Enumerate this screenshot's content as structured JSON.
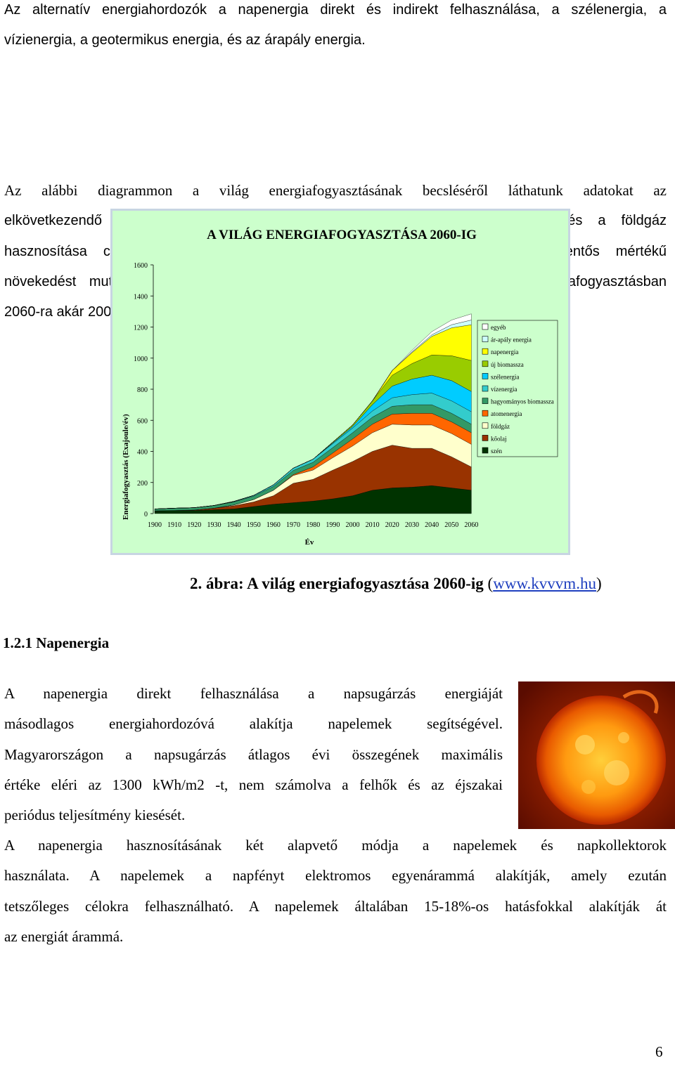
{
  "intro": {
    "lines": [
      "Az alternatív energiahordozók a napenergia direkt és indirekt felhasználása, a szélenergia, a",
      "vízienergia, a geotermikus energia, és az árapály energia."
    ]
  },
  "chart_paragraph": {
    "lines": [
      "Az alábbi diagrammon a világ energiafogyasztásának becsléséről láthatunk adatokat az",
      "elkövetkezendő évtizedekre. Az ábrából kivehető, hogy a kőolaj, a szén és a földgáz",
      "hasznosítása csökkeni fog, míg a megújuló energiaforrások kiaknázása jelentős mértékű",
      "növekedést mutat. Így a citromsárgával jelölt napenergia részvétele az energiafogyasztásban",
      "2060-ra akár 200-300 Exajoule is lehet évente!"
    ]
  },
  "chart_data": {
    "type": "area",
    "stacked": true,
    "title": "A VILÁG ENERGIAFOGYASZTÁSA 2060-IG",
    "xlabel": "Év",
    "ylabel": "Energiafogyasztás (Exajoule/év)",
    "ylim": [
      0,
      1600
    ],
    "y_ticks": [
      "0",
      "200",
      "400",
      "600",
      "800",
      "1000",
      "1200",
      "1400",
      "1600"
    ],
    "x": [
      1900,
      1910,
      1920,
      1930,
      1940,
      1950,
      1960,
      1970,
      1980,
      1990,
      2000,
      2010,
      2020,
      2030,
      2040,
      2050,
      2060
    ],
    "x_ticks": [
      "1900",
      "1910",
      "1920",
      "1930",
      "1940",
      "1950",
      "1960",
      "1970",
      "1980",
      "1990",
      "2000",
      "2010",
      "2020",
      "2030",
      "2040",
      "2050",
      "2060"
    ],
    "legend_position": "right",
    "plot_background": "#ccffcc",
    "series": [
      {
        "name": "szén",
        "color": "#003300",
        "values": [
          18,
          20,
          20,
          25,
          30,
          45,
          60,
          70,
          80,
          95,
          115,
          150,
          165,
          170,
          180,
          165,
          150
        ]
      },
      {
        "name": "kőolaj",
        "color": "#993300",
        "values": [
          0,
          0,
          3,
          10,
          20,
          30,
          55,
          125,
          140,
          185,
          220,
          250,
          275,
          250,
          240,
          200,
          150
        ]
      },
      {
        "name": "földgáz",
        "color": "#ffffcc",
        "values": [
          0,
          0,
          0,
          0,
          5,
          15,
          35,
          50,
          60,
          80,
          100,
          120,
          135,
          150,
          150,
          150,
          145
        ]
      },
      {
        "name": "atomenergia",
        "color": "#ff6600",
        "values": [
          0,
          0,
          0,
          0,
          0,
          0,
          0,
          5,
          20,
          30,
          45,
          55,
          65,
          75,
          75,
          75,
          75
        ]
      },
      {
        "name": "hagyományos biomassza",
        "color": "#339966",
        "values": [
          12,
          15,
          15,
          17,
          20,
          22,
          25,
          27,
          30,
          35,
          40,
          45,
          50,
          55,
          55,
          55,
          55
        ]
      },
      {
        "name": "vízenergia",
        "color": "#33cccc",
        "values": [
          0,
          0,
          0,
          0,
          3,
          5,
          10,
          15,
          20,
          25,
          30,
          40,
          55,
          65,
          75,
          80,
          80
        ]
      },
      {
        "name": "szélenergia",
        "color": "#00ccff",
        "values": [
          0,
          0,
          0,
          0,
          0,
          0,
          0,
          0,
          0,
          5,
          10,
          40,
          75,
          100,
          115,
          130,
          130
        ]
      },
      {
        "name": "új biomassza",
        "color": "#99cc00",
        "values": [
          0,
          0,
          0,
          0,
          0,
          0,
          0,
          0,
          0,
          5,
          10,
          25,
          70,
          100,
          130,
          160,
          200
        ]
      },
      {
        "name": "napenergia",
        "color": "#ffff00",
        "values": [
          0,
          0,
          0,
          0,
          0,
          0,
          0,
          0,
          0,
          0,
          0,
          0,
          30,
          70,
          120,
          180,
          230
        ]
      },
      {
        "name": "ár-apály energia",
        "color": "#ccffff",
        "values": [
          0,
          0,
          0,
          0,
          0,
          0,
          0,
          0,
          0,
          0,
          0,
          0,
          0,
          5,
          10,
          20,
          30
        ]
      },
      {
        "name": "egyéb",
        "color": "#ffffff",
        "values": [
          0,
          0,
          0,
          0,
          0,
          0,
          0,
          0,
          0,
          0,
          0,
          0,
          0,
          10,
          20,
          30,
          40
        ]
      }
    ],
    "legend_entries": [
      "egyéb",
      "ár-apály energia",
      "napenergia",
      "új biomassza",
      "szélenergia",
      "vízenergia",
      "hagyományos biomassza",
      "atomenergia",
      "földgáz",
      "kőolaj",
      "szén"
    ]
  },
  "caption": {
    "text": "2. ábra: A világ energiafogyasztása 2060-ig",
    "paren_open": " (",
    "link": "www.kvvvm.hu",
    "paren_close": ")"
  },
  "section": {
    "heading": "1.2.1 Napenergia"
  },
  "solar_paragraph": {
    "lines": [
      "A napenergia direkt felhasználása a napsugárzás energiáját",
      "másodlagos energiahordozóvá alakítja napelemek segítségével.",
      "Magyarországon a napsugárzás átlagos évi összegének maximális",
      "értéke eléri az 1300 kWh/m2 -t, nem számolva a felhők és az éjszakai",
      "periódus teljesítmény kiesését."
    ]
  },
  "pv_paragraph": {
    "lines": [
      "A napenergia hasznosításának két alapvető módja a napelemek és napkollektorok",
      "használata. A napelemek a napfényt elektromos egyenárammá alakítják, amely ezután",
      "tetszőleges célokra felhasználható. A napelemek általában 15-18%-os hatásfokkal alakítják át",
      "az energiát árammá."
    ]
  },
  "page": {
    "number": "6"
  }
}
